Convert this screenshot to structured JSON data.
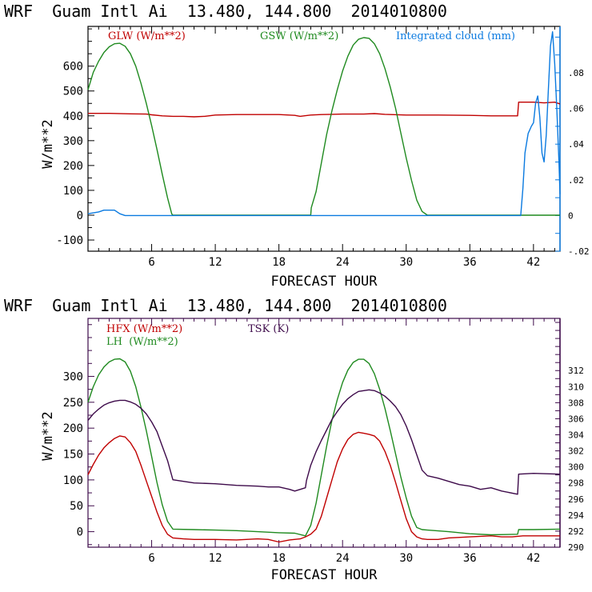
{
  "chart_data": [
    {
      "type": "line",
      "title": "WRF  Guam Intl Ai  13.480, 144.800  2014010800",
      "xlabel": "FORECAST HOUR",
      "ylabel": "W/m**2",
      "y2label": "Integrated cloud (mm)",
      "xlim": [
        0,
        44.5
      ],
      "ylim": [
        -145,
        760
      ],
      "y2lim": [
        -0.02,
        0.106
      ],
      "xticks": [
        6,
        12,
        18,
        24,
        30,
        36,
        42
      ],
      "xtick_labels": [
        "6",
        "12",
        "18",
        "24",
        "30",
        "36",
        "42"
      ],
      "yticks": [
        -100,
        0,
        100,
        200,
        300,
        400,
        500,
        600
      ],
      "ytick_labels": [
        "-100",
        "0",
        "100",
        "200",
        "300",
        "400",
        "500",
        "600"
      ],
      "y2ticks": [
        -0.02,
        0,
        0.02,
        0.04,
        0.06,
        0.08
      ],
      "y2tick_labels": [
        "-.02",
        "0",
        ".02",
        ".04",
        ".06",
        ".08"
      ],
      "grid": false,
      "legend": [
        {
          "label": "GLW (W/m**2)",
          "color": "#c00000",
          "axis": "left"
        },
        {
          "label": "GSW (W/m**2)",
          "color": "#1f8a1f",
          "axis": "left"
        },
        {
          "label": "Integrated cloud (mm)",
          "color": "#0a7ae0",
          "axis": "right"
        }
      ],
      "frame_color": "#000000",
      "right_axis_color": "#0a7ae0",
      "series": [
        {
          "name": "GLW (W/m**2)",
          "axis": "left",
          "color": "#c00000",
          "x": [
            0,
            2,
            4,
            5.5,
            6,
            7,
            8,
            9,
            10,
            11,
            12,
            14,
            18,
            19.5,
            20,
            21,
            22,
            23,
            24,
            26,
            27,
            28,
            30,
            33,
            36,
            38,
            40.5,
            40.6,
            42,
            43,
            44,
            44.5
          ],
          "y": [
            410,
            410,
            408,
            407,
            404,
            400,
            398,
            398,
            396,
            398,
            403,
            405,
            405,
            402,
            398,
            403,
            405,
            406,
            407,
            407,
            409,
            406,
            403,
            403,
            402,
            400,
            400,
            455,
            455,
            452,
            455,
            448
          ]
        },
        {
          "name": "GSW (W/m**2)",
          "axis": "left",
          "color": "#1f8a1f",
          "x": [
            0,
            0.5,
            1,
            1.5,
            2,
            2.5,
            3,
            3.5,
            4,
            4.5,
            5,
            5.5,
            6,
            6.5,
            7,
            7.5,
            7.9,
            8,
            21,
            21.05,
            21.5,
            22,
            22.5,
            23,
            23.5,
            24,
            24.5,
            25,
            25.5,
            26,
            26.5,
            27,
            27.5,
            28,
            28.5,
            29,
            29.5,
            30,
            30.5,
            31,
            31.5,
            32,
            32.1,
            44.5
          ],
          "y": [
            505,
            575,
            620,
            655,
            678,
            690,
            692,
            680,
            650,
            600,
            530,
            450,
            360,
            265,
            165,
            70,
            5,
            0,
            0,
            30,
            95,
            210,
            325,
            420,
            505,
            580,
            640,
            685,
            708,
            715,
            712,
            690,
            650,
            590,
            515,
            430,
            330,
            230,
            140,
            60,
            15,
            0,
            0,
            0
          ]
        },
        {
          "name": "Integrated cloud (mm)",
          "axis": "right",
          "color": "#0a7ae0",
          "x": [
            0,
            1,
            1.5,
            2.5,
            3,
            3.5,
            40.8,
            41,
            41.2,
            41.5,
            41.8,
            42,
            42.2,
            42.4,
            42.6,
            42.8,
            43,
            43.2,
            43.4,
            43.6,
            43.8,
            44,
            44.2,
            44.4,
            44.5
          ],
          "y": [
            0.001,
            0.002,
            0.003,
            0.003,
            0.001,
            0.0,
            0.0,
            0.015,
            0.035,
            0.046,
            0.05,
            0.052,
            0.063,
            0.067,
            0.055,
            0.035,
            0.03,
            0.045,
            0.07,
            0.095,
            0.103,
            0.085,
            0.06,
            0.03,
            0.012
          ]
        }
      ]
    },
    {
      "type": "line",
      "title": "WRF  Guam Intl Ai  13.480, 144.800  2014010800",
      "xlabel": "FORECAST HOUR",
      "ylabel": "W/m**2",
      "y2label": "TSK (K)",
      "xlim": [
        0,
        44.5
      ],
      "ylim": [
        -30,
        412
      ],
      "y2lim": [
        290,
        318.5
      ],
      "xticks": [
        6,
        12,
        18,
        24,
        30,
        36,
        42
      ],
      "xtick_labels": [
        "6",
        "12",
        "18",
        "24",
        "30",
        "36",
        "42"
      ],
      "yticks": [
        0,
        50,
        100,
        150,
        200,
        250,
        300
      ],
      "ytick_labels": [
        "0",
        "50",
        "100",
        "150",
        "200",
        "250",
        "300"
      ],
      "y2ticks": [
        290,
        292,
        294,
        296,
        298,
        300,
        302,
        304,
        306,
        308,
        310,
        312
      ],
      "y2tick_labels": [
        "290",
        "292",
        "294",
        "296",
        "298",
        "300",
        "302",
        "304",
        "306",
        "308",
        "310",
        "312"
      ],
      "grid": false,
      "legend": [
        {
          "label": "HFX (W/m**2)",
          "color": "#c00000",
          "axis": "left"
        },
        {
          "label": "LH  (W/m**2)",
          "color": "#1f8a1f",
          "axis": "left"
        },
        {
          "label": "TSK (K)",
          "color": "#3d0a4a",
          "axis": "right"
        }
      ],
      "frame_color": "#3d0a4a",
      "right_axis_color": "#3d0a4a",
      "series": [
        {
          "name": "HFX (W/m**2)",
          "axis": "left",
          "color": "#c00000",
          "x": [
            0,
            0.5,
            1,
            1.5,
            2,
            2.5,
            3,
            3.5,
            4,
            4.5,
            5,
            5.5,
            6,
            6.5,
            7,
            7.5,
            8,
            9,
            10,
            12,
            14,
            16,
            17,
            18,
            19,
            20,
            20.5,
            21,
            21.5,
            22,
            22.5,
            23,
            23.5,
            24,
            24.5,
            25,
            25.5,
            26,
            26.5,
            27,
            27.5,
            28,
            28.5,
            29,
            29.5,
            30,
            30.5,
            31,
            31.5,
            32,
            33,
            34,
            36,
            38,
            39,
            40,
            41,
            42,
            44,
            44.5
          ],
          "y": [
            110,
            130,
            148,
            162,
            172,
            180,
            185,
            183,
            172,
            155,
            128,
            98,
            68,
            38,
            12,
            -5,
            -12,
            -14,
            -15,
            -15,
            -16,
            -14,
            -15,
            -20,
            -16,
            -14,
            -10,
            -5,
            5,
            30,
            65,
            100,
            135,
            160,
            178,
            188,
            192,
            190,
            188,
            185,
            175,
            155,
            128,
            95,
            60,
            25,
            0,
            -10,
            -14,
            -15,
            -15,
            -12,
            -10,
            -8,
            -10,
            -10,
            -8,
            -8,
            -8,
            -8
          ]
        },
        {
          "name": "LH (W/m**2)",
          "axis": "left",
          "color": "#1f8a1f",
          "x": [
            0,
            0.5,
            1,
            1.5,
            2,
            2.5,
            3,
            3.5,
            4,
            4.5,
            5,
            5.5,
            6,
            6.5,
            7,
            7.5,
            8,
            10,
            12,
            14,
            16,
            18,
            19.5,
            20.5,
            21,
            21.5,
            22,
            22.5,
            23,
            23.5,
            24,
            24.5,
            25,
            25.5,
            26,
            26.5,
            27,
            27.5,
            28,
            28.5,
            29,
            29.5,
            30,
            30.5,
            31,
            31.5,
            32,
            34,
            36,
            38,
            40.5,
            40.6,
            42,
            44.5
          ],
          "y": [
            250,
            280,
            303,
            318,
            328,
            333,
            334,
            328,
            310,
            280,
            240,
            195,
            145,
            95,
            52,
            20,
            5,
            4,
            3,
            2,
            0,
            -2,
            -3,
            -8,
            12,
            55,
            110,
            165,
            215,
            255,
            288,
            312,
            327,
            333,
            333,
            325,
            305,
            275,
            238,
            195,
            150,
            105,
            65,
            30,
            8,
            4,
            3,
            0,
            -4,
            -6,
            -5,
            4,
            4,
            5
          ]
        },
        {
          "name": "TSK (K)",
          "axis": "right",
          "color": "#3d0a4a",
          "x": [
            0,
            0.5,
            1,
            1.5,
            2,
            2.5,
            3,
            3.5,
            4,
            4.5,
            5,
            5.5,
            6,
            6.5,
            7,
            7.5,
            8,
            9,
            10,
            12,
            14,
            16,
            17,
            18,
            19,
            19.5,
            20.5,
            20.6,
            21,
            21.5,
            22,
            22.5,
            23,
            23.5,
            24,
            24.5,
            25,
            25.5,
            26,
            26.5,
            27,
            27.5,
            28,
            28.5,
            29,
            29.5,
            30,
            30.5,
            31,
            31.5,
            32,
            33,
            34,
            35,
            36,
            37,
            38,
            39,
            40.5,
            40.6,
            42,
            44.5
          ],
          "y": [
            305.8,
            306.6,
            307.2,
            307.7,
            308.0,
            308.2,
            308.3,
            308.3,
            308.1,
            307.8,
            307.3,
            306.6,
            305.6,
            304.4,
            302.6,
            300.8,
            298.4,
            298.2,
            298.0,
            297.9,
            297.7,
            297.6,
            297.5,
            297.5,
            297.2,
            297.0,
            297.4,
            298.3,
            300.2,
            301.9,
            303.3,
            304.6,
            305.9,
            306.9,
            307.8,
            308.5,
            309.0,
            309.4,
            309.5,
            309.6,
            309.5,
            309.2,
            308.8,
            308.2,
            307.5,
            306.5,
            305.1,
            303.4,
            301.5,
            299.6,
            298.9,
            298.6,
            298.2,
            297.8,
            297.6,
            297.2,
            297.4,
            297.0,
            296.6,
            299.1,
            299.2,
            299.1
          ]
        }
      ]
    }
  ]
}
